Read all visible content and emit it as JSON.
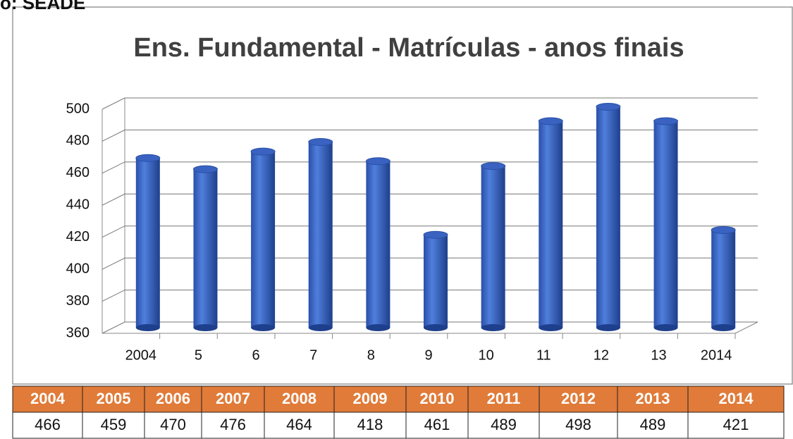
{
  "caption": "o: SEADE",
  "chart_data": {
    "type": "bar",
    "title": "Ens. Fundamental - Matrículas - anos finais",
    "categories": [
      "2004",
      "5",
      "6",
      "7",
      "8",
      "9",
      "10",
      "11",
      "12",
      "13",
      "2014"
    ],
    "values": [
      466,
      459,
      470,
      476,
      464,
      418,
      461,
      489,
      498,
      489,
      421
    ],
    "color": "#3a62c0",
    "ylim": [
      360,
      500
    ],
    "yticks": [
      360,
      380,
      400,
      420,
      440,
      460,
      480,
      500
    ],
    "grid": true
  },
  "table": {
    "header": [
      "2004",
      "2005",
      "2006",
      "2007",
      "2008",
      "2009",
      "2010",
      "2011",
      "2012",
      "2013",
      "2014"
    ]
  }
}
